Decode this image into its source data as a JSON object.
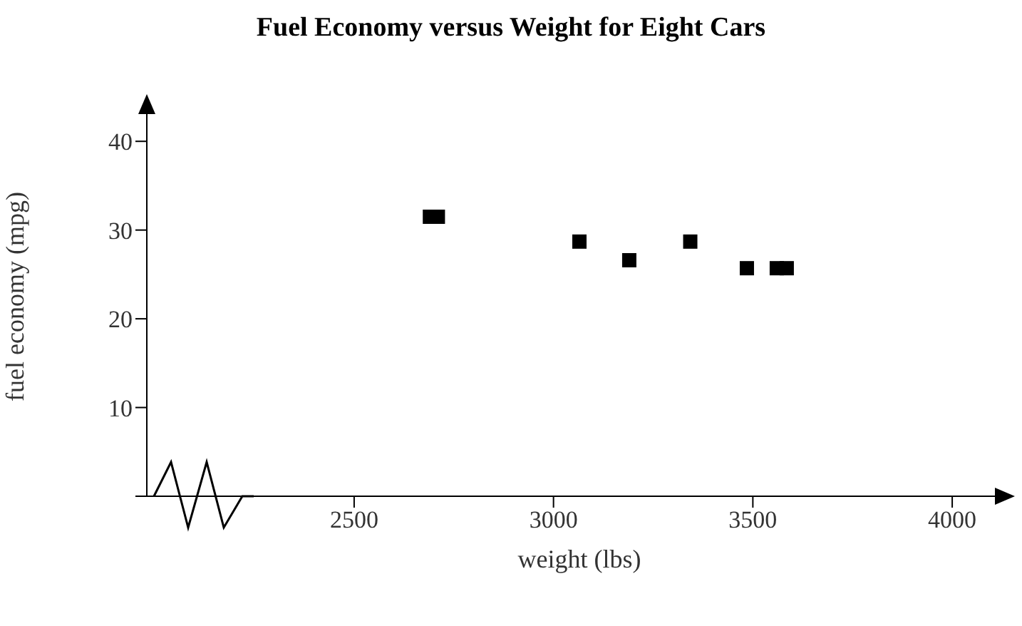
{
  "chart_data": {
    "type": "scatter",
    "title": "Fuel Economy versus Weight for Eight Cars",
    "xlabel": "weight (lbs)",
    "ylabel": "fuel economy (mpg)",
    "x": [
      2690,
      2710,
      3065,
      3190,
      3343,
      3485,
      3560,
      3585
    ],
    "values": [
      31.5,
      31.5,
      28.7,
      26.6,
      28.7,
      25.7,
      25.7,
      25.7
    ],
    "color": "#000000",
    "marker": "square",
    "grid": false,
    "xlim": [
      1980,
      4150
    ],
    "xticks": [
      2500,
      3000,
      3500,
      4000
    ],
    "ylim": [
      0,
      45
    ],
    "yticks": [
      {
        "value": 0,
        "label": null
      },
      10,
      20,
      30,
      40
    ]
  }
}
